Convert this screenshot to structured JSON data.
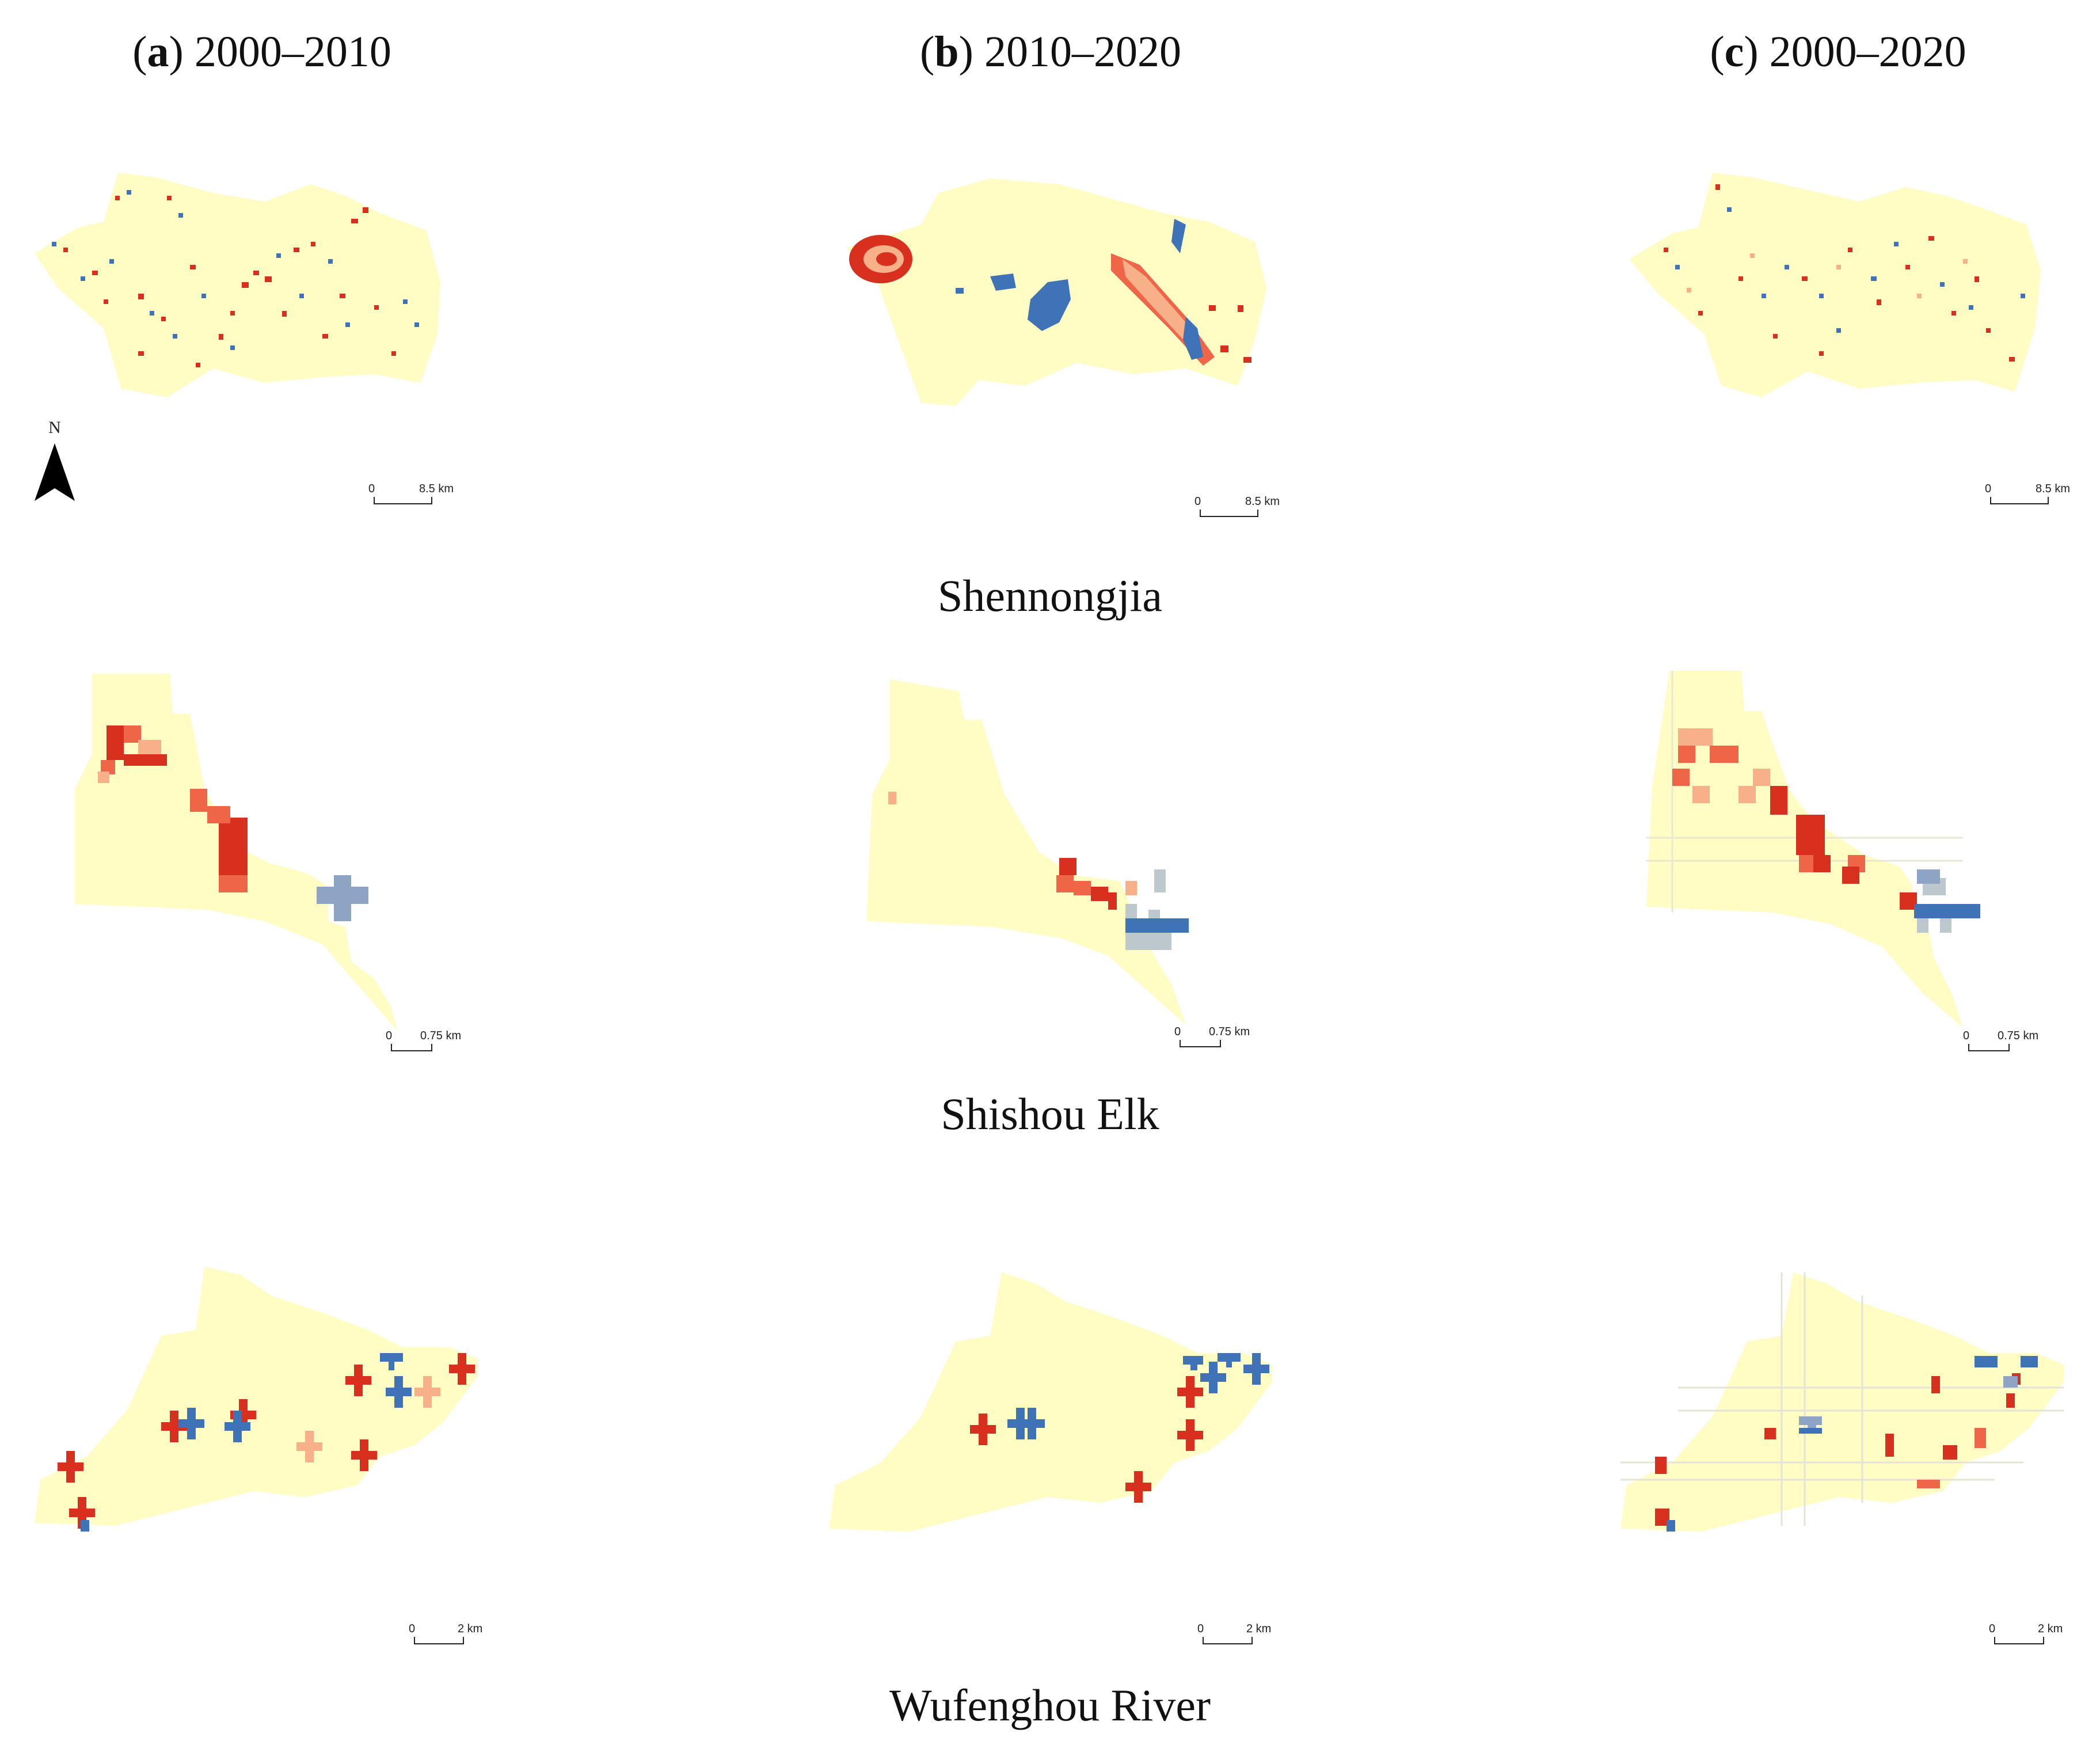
{
  "column_titles": [
    {
      "letter": "a",
      "period": "2000–2010"
    },
    {
      "letter": "b",
      "period": "2010–2020"
    },
    {
      "letter": "c",
      "period": "2000–2020"
    }
  ],
  "rows": [
    {
      "name": "Shennongjia",
      "scale_zero": "0",
      "scale_label": "8.5 km"
    },
    {
      "name": "Shishou Elk",
      "scale_zero": "0",
      "scale_label": "0.75 km"
    },
    {
      "name": "Wufenghou River",
      "scale_zero": "0",
      "scale_label": "2 km"
    }
  ],
  "north_arrow_label": "N",
  "colors": {
    "background_area": "#FFFDC4",
    "dark_red": "#D7301F",
    "light_red": "#EF6548",
    "salmon": "#F8B088",
    "blue": "#3F73B8",
    "grey_blue": "#8EA4C4",
    "pale_grey_blue": "#BCC8CC"
  }
}
